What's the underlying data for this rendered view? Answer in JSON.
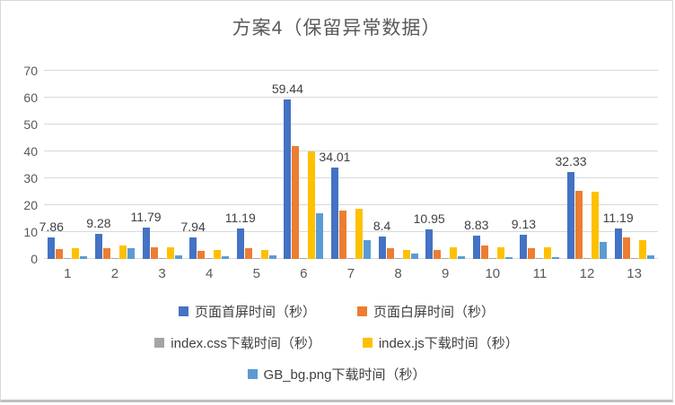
{
  "title": "方案4（保留异常数据）",
  "chart_data": {
    "type": "bar",
    "title": "方案4（保留异常数据）",
    "categories": [
      "1",
      "2",
      "3",
      "4",
      "5",
      "6",
      "7",
      "8",
      "9",
      "10",
      "11",
      "12",
      "13"
    ],
    "ylim": [
      0,
      70
    ],
    "yticks": [
      0,
      10,
      20,
      30,
      40,
      50,
      60,
      70
    ],
    "grid": true,
    "legend_position": "bottom",
    "series": [
      {
        "name": "页面首屏时间（秒）",
        "color": "#4472C4",
        "values": [
          7.86,
          9.28,
          11.79,
          7.94,
          11.19,
          59.44,
          34.01,
          8.4,
          10.95,
          8.83,
          9.13,
          32.33,
          11.19
        ],
        "data_labels": [
          "7.86",
          "9.28",
          "11.79",
          "7.94",
          "11.19",
          "59.44",
          "34.01",
          "8.4",
          "10.95",
          "8.83",
          "9.13",
          "32.33",
          "11.19"
        ]
      },
      {
        "name": "页面白屏时间（秒）",
        "color": "#ED7D31",
        "values": [
          3.7,
          4.0,
          4.3,
          3.0,
          4.0,
          42.0,
          18.0,
          4.0,
          3.3,
          5.0,
          4.0,
          25.5,
          8.0
        ]
      },
      {
        "name": "index.css下载时间（秒）",
        "color": "#A5A5A5",
        "values": [
          0.3,
          0.3,
          0.3,
          0.3,
          0.3,
          0.5,
          0.5,
          0.3,
          0.3,
          0.3,
          0.3,
          0.5,
          0.3
        ]
      },
      {
        "name": "index.js下载时间（秒）",
        "color": "#FFC000",
        "values": [
          4.0,
          5.0,
          4.3,
          3.3,
          3.3,
          40.0,
          18.7,
          3.3,
          4.3,
          4.3,
          4.3,
          25.0,
          7.0
        ]
      },
      {
        "name": "GB_bg.png下载时间（秒）",
        "color": "#5B9BD5",
        "values": [
          1.0,
          4.0,
          1.3,
          1.0,
          1.3,
          17.0,
          7.0,
          2.0,
          1.0,
          0.7,
          0.7,
          6.3,
          1.3
        ]
      }
    ],
    "legend_rows": [
      [
        0,
        1
      ],
      [
        2,
        3
      ],
      [
        4
      ]
    ]
  }
}
